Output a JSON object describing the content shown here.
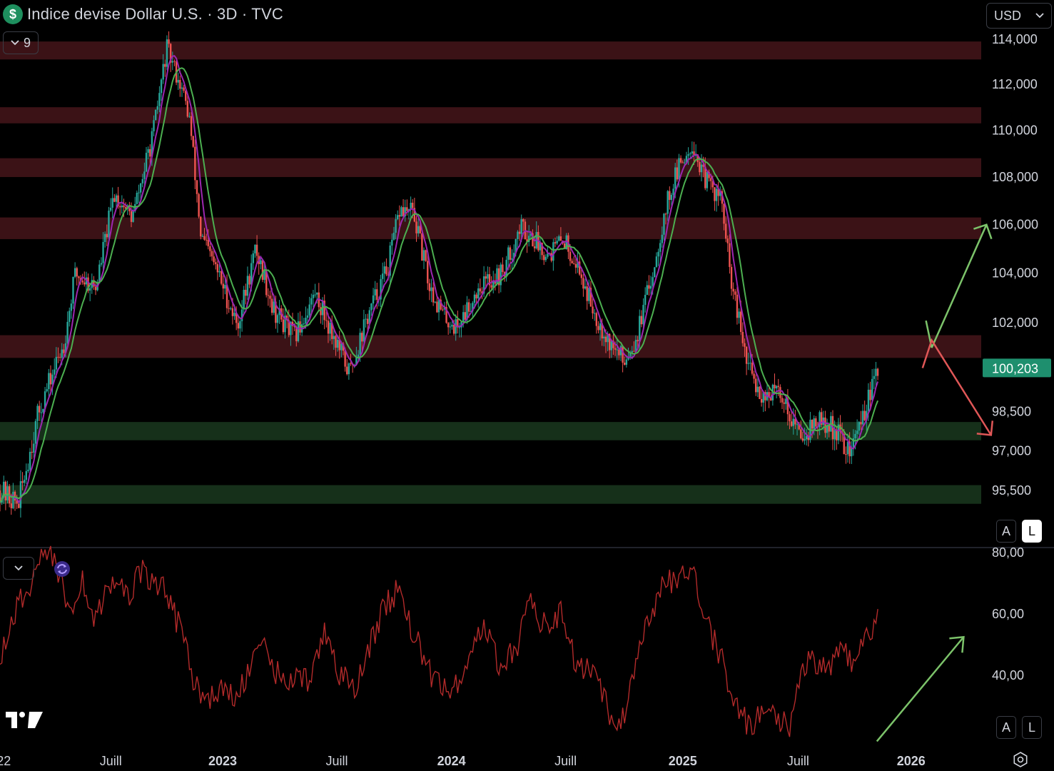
{
  "header": {
    "title": "Indice devise Dollar U.S. · 3D · TVC",
    "symbol_icon": "dollar-coin-icon",
    "indicator_count": "9",
    "currency": "USD"
  },
  "buttons": {
    "price_auto": "A",
    "price_log": "L",
    "osc_auto": "A",
    "osc_log": "L"
  },
  "colors": {
    "bull": "#26a69a",
    "bear": "#ef5350",
    "ma_fast": "#9c27b0",
    "ma_slow": "#4caf50",
    "resistance_zone": "#3b1216",
    "support_zone": "#16301a",
    "oscillator": "#b22a2a",
    "arrow_up": "#7cc36a",
    "arrow_down": "#e05757",
    "price_label": "#1e8f6e"
  },
  "chart_data": [
    {
      "type": "candlestick",
      "title": "Indice devise Dollar U.S. · 3D · TVC",
      "x_ticks": [
        "22",
        "Juill",
        "2023",
        "Juill",
        "2024",
        "Juill",
        "2025",
        "Juill",
        "2026"
      ],
      "y_ticks": [
        "114,000",
        "112,000",
        "110,000",
        "108,000",
        "106,000",
        "104,000",
        "102,000",
        "98,500",
        "97,000",
        "95,500"
      ],
      "ylim": [
        93.8,
        115.0
      ],
      "log_scale": true,
      "last_price": "100,203",
      "last_value": 100.203,
      "resistance_zones": [
        [
          113.1,
          113.9
        ],
        [
          110.3,
          111.0
        ],
        [
          108.0,
          108.8
        ],
        [
          105.4,
          106.3
        ],
        [
          100.6,
          101.5
        ]
      ],
      "support_zones": [
        [
          97.4,
          98.1
        ],
        [
          95.0,
          95.7
        ]
      ],
      "waypoints": [
        [
          2022.0,
          95.5
        ],
        [
          2022.08,
          95.0
        ],
        [
          2022.17,
          98.5
        ],
        [
          2022.28,
          101.2
        ],
        [
          2022.33,
          104.0
        ],
        [
          2022.42,
          103.4
        ],
        [
          2022.5,
          107.3
        ],
        [
          2022.58,
          106.3
        ],
        [
          2022.67,
          109.8
        ],
        [
          2022.73,
          113.6
        ],
        [
          2022.79,
          112.0
        ],
        [
          2022.83,
          110.5
        ],
        [
          2022.88,
          105.5
        ],
        [
          2022.95,
          104.1
        ],
        [
          2023.04,
          101.9
        ],
        [
          2023.12,
          105.0
        ],
        [
          2023.2,
          102.5
        ],
        [
          2023.29,
          101.4
        ],
        [
          2023.38,
          103.2
        ],
        [
          2023.45,
          101.7
        ],
        [
          2023.53,
          100.0
        ],
        [
          2023.6,
          102.0
        ],
        [
          2023.7,
          104.3
        ],
        [
          2023.75,
          106.6
        ],
        [
          2023.81,
          106.5
        ],
        [
          2023.88,
          103.5
        ],
        [
          2023.94,
          102.3
        ],
        [
          2024.0,
          101.8
        ],
        [
          2024.1,
          103.5
        ],
        [
          2024.2,
          104.0
        ],
        [
          2024.28,
          105.9
        ],
        [
          2024.33,
          105.5
        ],
        [
          2024.4,
          104.8
        ],
        [
          2024.47,
          105.4
        ],
        [
          2024.52,
          104.5
        ],
        [
          2024.6,
          102.5
        ],
        [
          2024.67,
          101.2
        ],
        [
          2024.73,
          100.5
        ],
        [
          2024.79,
          101.5
        ],
        [
          2024.85,
          103.7
        ],
        [
          2024.92,
          106.9
        ],
        [
          2024.96,
          108.1
        ],
        [
          2025.03,
          109.5
        ],
        [
          2025.08,
          108.0
        ],
        [
          2025.16,
          107.0
        ],
        [
          2025.2,
          103.7
        ],
        [
          2025.27,
          100.4
        ],
        [
          2025.33,
          99.2
        ],
        [
          2025.42,
          99.2
        ],
        [
          2025.5,
          97.6
        ],
        [
          2025.58,
          98.1
        ],
        [
          2025.66,
          97.8
        ],
        [
          2025.72,
          96.9
        ],
        [
          2025.78,
          98.4
        ],
        [
          2025.85,
          100.2
        ]
      ],
      "series": [
        {
          "name": "",
          "kind": "moving_average",
          "period": "fast"
        },
        {
          "name": "",
          "kind": "moving_average",
          "period": "slow"
        }
      ],
      "annotations": [
        {
          "kind": "arrow",
          "direction": "up",
          "from": [
            2026.08,
            101.0
          ],
          "to": [
            2026.32,
            106.0
          ]
        },
        {
          "kind": "arrow",
          "direction": "down-up",
          "points": [
            [
              2026.04,
              100.2
            ],
            [
              2026.08,
              101.3
            ],
            [
              2026.34,
              97.6
            ]
          ]
        }
      ]
    },
    {
      "type": "line",
      "title": "",
      "y_ticks": [
        "80,00",
        "60,00",
        "40,00"
      ],
      "ylim": [
        17,
        80
      ],
      "waypoints": [
        [
          2022.0,
          45
        ],
        [
          2022.06,
          60
        ],
        [
          2022.12,
          68
        ],
        [
          2022.17,
          76
        ],
        [
          2022.22,
          82
        ],
        [
          2022.3,
          62
        ],
        [
          2022.36,
          70
        ],
        [
          2022.42,
          58
        ],
        [
          2022.5,
          72
        ],
        [
          2022.56,
          66
        ],
        [
          2022.62,
          74
        ],
        [
          2022.68,
          70
        ],
        [
          2022.73,
          68
        ],
        [
          2022.8,
          52
        ],
        [
          2022.85,
          38
        ],
        [
          2022.9,
          32
        ],
        [
          2022.96,
          35
        ],
        [
          2023.03,
          32
        ],
        [
          2023.1,
          44
        ],
        [
          2023.16,
          48
        ],
        [
          2023.22,
          40
        ],
        [
          2023.3,
          38
        ],
        [
          2023.36,
          38
        ],
        [
          2023.42,
          56
        ],
        [
          2023.48,
          42
        ],
        [
          2023.55,
          34
        ],
        [
          2023.62,
          50
        ],
        [
          2023.68,
          62
        ],
        [
          2023.74,
          68
        ],
        [
          2023.82,
          52
        ],
        [
          2023.9,
          38
        ],
        [
          2023.98,
          34
        ],
        [
          2024.05,
          46
        ],
        [
          2024.12,
          56
        ],
        [
          2024.18,
          44
        ],
        [
          2024.26,
          48
        ],
        [
          2024.32,
          66
        ],
        [
          2024.38,
          56
        ],
        [
          2024.46,
          60
        ],
        [
          2024.52,
          44
        ],
        [
          2024.58,
          42
        ],
        [
          2024.64,
          34
        ],
        [
          2024.7,
          20
        ],
        [
          2024.76,
          34
        ],
        [
          2024.83,
          56
        ],
        [
          2024.9,
          68
        ],
        [
          2024.96,
          72
        ],
        [
          2025.04,
          74
        ],
        [
          2025.1,
          56
        ],
        [
          2025.16,
          46
        ],
        [
          2025.22,
          30
        ],
        [
          2025.28,
          24
        ],
        [
          2025.34,
          28
        ],
        [
          2025.4,
          26
        ],
        [
          2025.46,
          24
        ],
        [
          2025.5,
          40
        ],
        [
          2025.55,
          46
        ],
        [
          2025.62,
          42
        ],
        [
          2025.68,
          48
        ],
        [
          2025.74,
          44
        ],
        [
          2025.8,
          52
        ],
        [
          2025.85,
          62
        ]
      ],
      "series": [
        {
          "name": "",
          "kind": "oscillator"
        }
      ],
      "annotations": [
        {
          "kind": "arrow",
          "direction": "up",
          "from": [
            2025.84,
            18.5
          ],
          "to": [
            2026.22,
            52.5
          ]
        }
      ]
    }
  ]
}
